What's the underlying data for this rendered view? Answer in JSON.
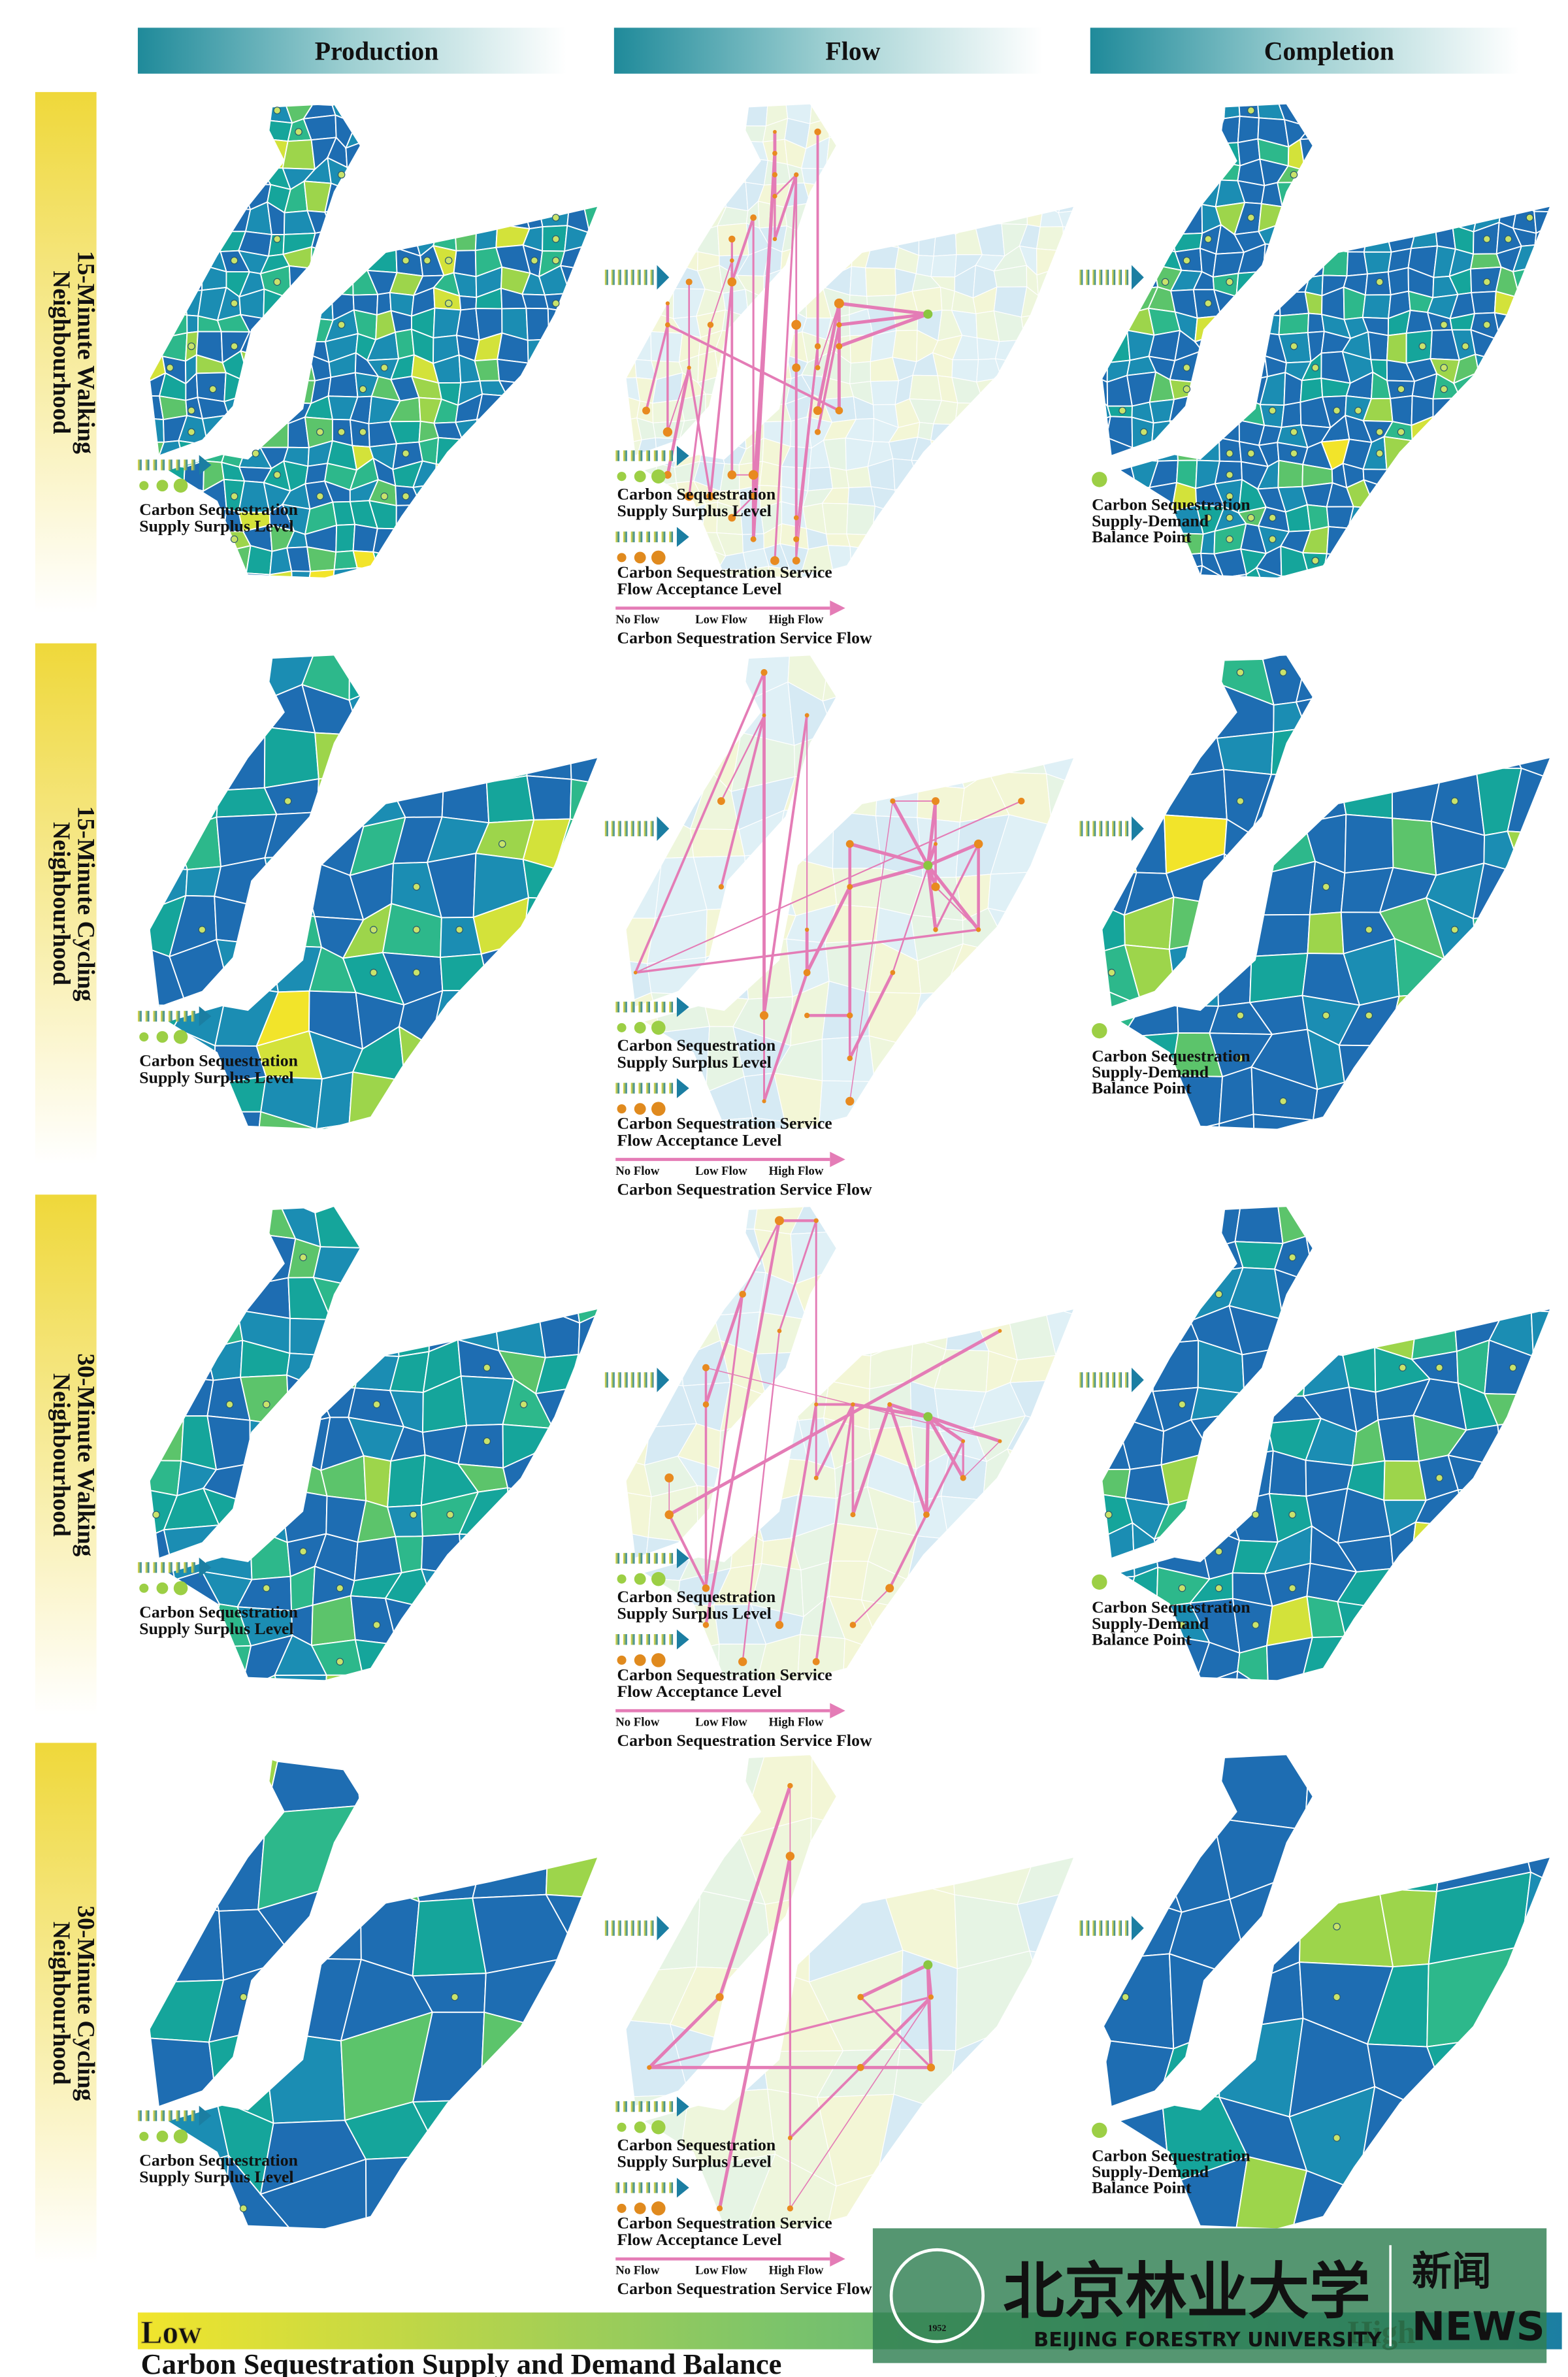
{
  "header": {
    "columns": [
      "Production",
      "Flow",
      "Completion"
    ]
  },
  "rows": [
    {
      "label": [
        "15-Minute Walking",
        "Neighbourhood"
      ],
      "production_legend": [
        "Carbon Sequestration",
        "Supply Surplus Level"
      ],
      "flow_legend": {
        "surplus": [
          "Carbon Sequestration",
          "Supply Surplus Level"
        ],
        "acceptance": [
          "Carbon Sequestration Service",
          "Flow Acceptance Level"
        ],
        "flow_scale": [
          "No Flow",
          "Low Flow",
          "High Flow"
        ],
        "flow": "Carbon Sequestration Service Flow"
      },
      "completion_legend": [
        "Carbon Sequestration",
        "Supply-Demand",
        "Balance Point"
      ]
    },
    {
      "label": [
        "15-Minute Cycling",
        "Neighbourhood"
      ],
      "production_legend": [
        "Carbon Sequestration",
        "Supply Surplus Level"
      ],
      "flow_legend": {
        "surplus": [
          "Carbon Sequestration",
          "Supply Surplus Level"
        ],
        "acceptance": [
          "Carbon Sequestration Service",
          "Flow Acceptance Level"
        ],
        "flow_scale": [
          "No Flow",
          "Low Flow",
          "High Flow"
        ],
        "flow": "Carbon Sequestration Service Flow"
      },
      "completion_legend": [
        "Carbon Sequestration",
        "Supply-Demand",
        "Balance Point"
      ]
    },
    {
      "label": [
        "30-Minute Walking",
        "Neighbourhood"
      ],
      "production_legend": [
        "Carbon Sequestration",
        "Supply Surplus Level"
      ],
      "flow_legend": {
        "surplus": [
          "Carbon Sequestration",
          "Supply Surplus Level"
        ],
        "acceptance": [
          "Carbon Sequestration Service",
          "Flow Acceptance Level"
        ],
        "flow_scale": [
          "No Flow",
          "Low Flow",
          "High Flow"
        ],
        "flow": "Carbon Sequestration Service Flow"
      },
      "completion_legend": [
        "Carbon Sequestration",
        "Supply-Demand",
        "Balance Point"
      ]
    },
    {
      "label": [
        "30-Minute Cycling",
        "Neighbourhood"
      ],
      "production_legend": [
        "Carbon Sequestration",
        "Supply Surplus Level"
      ],
      "flow_legend": {
        "surplus": [
          "Carbon Sequestration",
          "Supply Surplus Level"
        ],
        "acceptance": [
          "Carbon Sequestration Service",
          "Flow Acceptance Level"
        ],
        "flow_scale": [
          "No Flow",
          "Low Flow",
          "High Flow"
        ],
        "flow": "Carbon Sequestration Service Flow"
      },
      "completion_legend": [
        "Carbon Sequestration",
        "Supply-Demand",
        "Balance Point"
      ]
    }
  ],
  "footer": {
    "low": "Low",
    "high": "High",
    "title": "Carbon Sequestration Supply and Demand Balance"
  },
  "watermark": {
    "name_cn": "北京林业大学",
    "name_en": "BEIJING FORESTRY UNIVERSITY",
    "news_cn": "新闻",
    "news_en": "NEWS",
    "year": "1952"
  }
}
